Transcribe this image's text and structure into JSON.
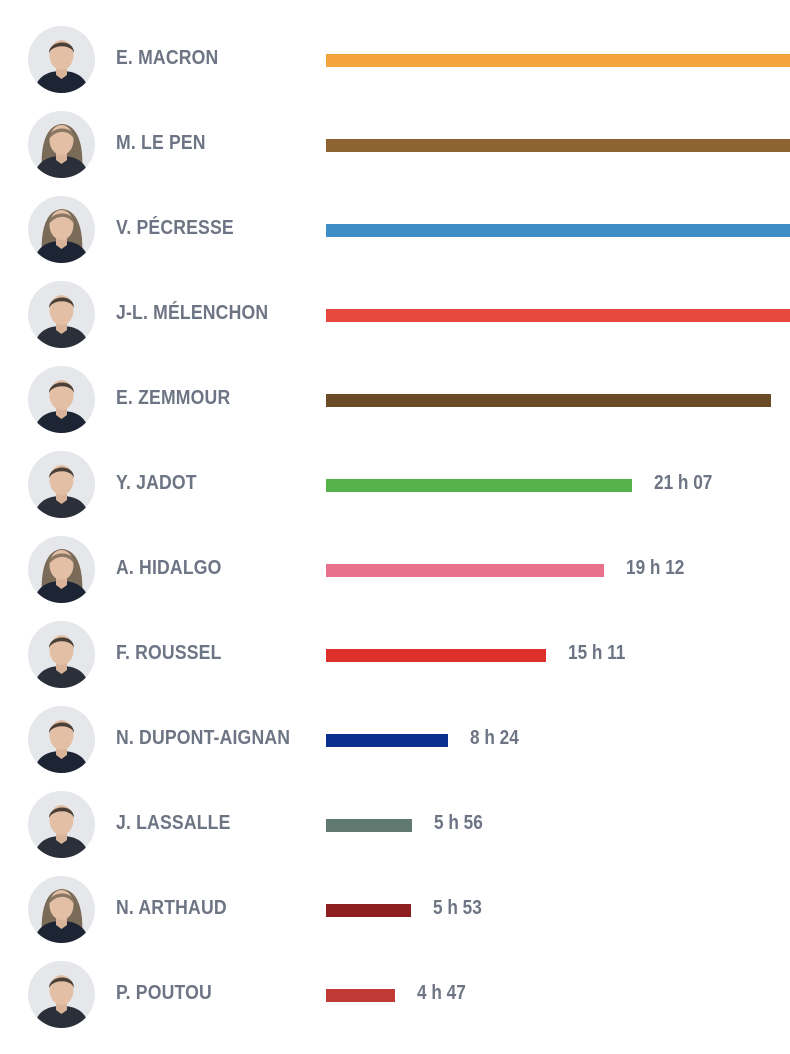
{
  "chart_data": {
    "type": "bar",
    "orientation": "horizontal",
    "title": "",
    "xlabel": "",
    "ylabel": "",
    "legend": "none",
    "grid": false,
    "value_unit": "minutes",
    "categories": [
      "E. MACRON",
      "M. LE PEN",
      "V. PÉCRESSE",
      "J-L. MÉLENCHON",
      "E. ZEMMOUR",
      "Y. JADOT",
      "A. HIDALGO",
      "F. ROUSSEL",
      "N. DUPONT-AIGNAN",
      "J. LASSALLE",
      "N. ARTHAUD",
      "P. POUTOU"
    ],
    "values": [
      1920,
      1920,
      1920,
      1920,
      1840,
      1267,
      1152,
      911,
      504,
      356,
      353,
      287
    ],
    "value_labels": [
      "",
      "",
      "",
      "",
      "",
      "21 h 07",
      "19 h 12",
      "15 h 11",
      "8 h 24",
      "5 h 56",
      "5 h 53",
      "4 h 47"
    ],
    "colors": [
      "#f4a43c",
      "#8c6331",
      "#3f8dc7",
      "#e8493f",
      "#6b4a26",
      "#55b24a",
      "#e8728e",
      "#dd302b",
      "#0b2f8e",
      "#607a72",
      "#8e1d1f",
      "#c23a35"
    ],
    "avatars": [
      "man-portrait-icon",
      "woman-portrait-icon",
      "woman-portrait-icon",
      "man-portrait-icon",
      "man-portrait-icon",
      "man-portrait-icon",
      "woman-portrait-icon",
      "man-portrait-icon",
      "man-portrait-icon",
      "man-portrait-icon",
      "woman-portrait-icon",
      "man-portrait-icon"
    ],
    "xlim": [
      0,
      1920
    ]
  }
}
